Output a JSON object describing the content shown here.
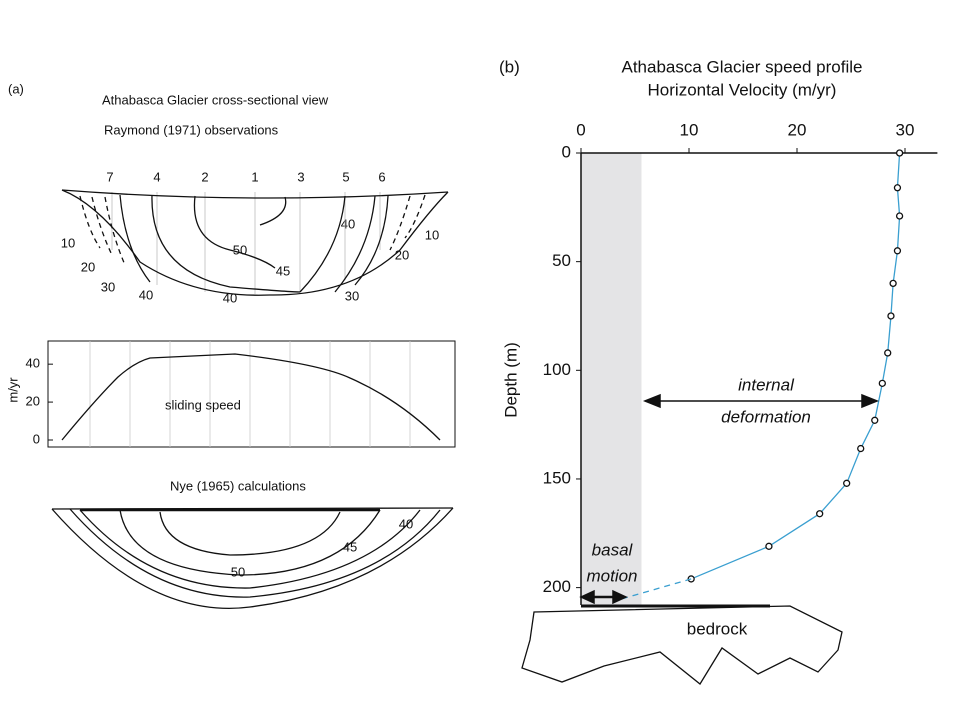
{
  "panel_a": {
    "label": "(a)",
    "title": "Athabasca Glacier cross-sectional view",
    "subtitle": "Raymond (1971) observations",
    "boreholes": [
      "7",
      "4",
      "2",
      "1",
      "3",
      "5",
      "6"
    ],
    "contours": [
      "10",
      "20",
      "30",
      "40",
      "50",
      "45",
      "40",
      "40",
      "30",
      "20",
      "10"
    ],
    "nye_title": "Nye (1965) calculations",
    "nye_contours": [
      "40",
      "45",
      "50"
    ]
  },
  "chart_data": [
    {
      "type": "line",
      "label": "(b)",
      "title": "Athabasca Glacier speed profile",
      "subtitle": "Horizontal Velocity (m/yr)",
      "y_label": "Depth (m)",
      "xlim": [
        0,
        33
      ],
      "xticks": [
        0,
        10,
        20,
        30
      ],
      "ylim": [
        0,
        208
      ],
      "yticks": [
        0,
        50,
        100,
        150,
        200
      ],
      "inverted_y": true,
      "shade_x": [
        0,
        5.6
      ],
      "series": [
        {
          "color": "#3a9fd0",
          "markers": true,
          "x": [
            29.5,
            29.3,
            29.5,
            29.3,
            28.9,
            28.7,
            28.4,
            27.9,
            27.2,
            25.9,
            24.6,
            22.1,
            17.4,
            10.2
          ],
          "values": [
            0,
            16,
            29,
            45,
            60,
            75,
            92,
            106,
            123,
            136,
            152,
            166,
            181,
            196
          ]
        },
        {
          "color": "#3a9fd0",
          "dashed": true,
          "x": [
            10.2,
            3.2
          ],
          "values": [
            196,
            206
          ]
        }
      ],
      "annotations": {
        "internal": [
          "internal",
          "deformation"
        ],
        "basal": [
          "basal",
          "motion"
        ],
        "bedrock": "bedrock"
      }
    },
    {
      "type": "line",
      "title": "sliding speed",
      "y_label": "m/yr",
      "ylim": [
        0,
        48
      ],
      "yticks": [
        0,
        20,
        40
      ]
    }
  ]
}
